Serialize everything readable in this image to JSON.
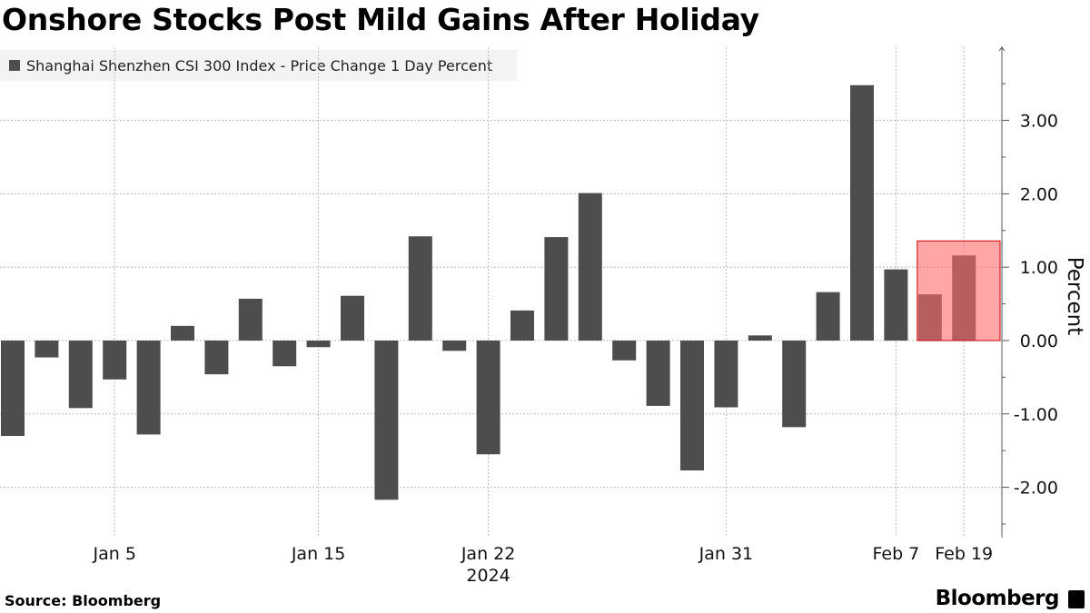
{
  "header": {
    "title": "Onshore Stocks Post Mild Gains After Holiday"
  },
  "footer": {
    "source": "Source: Bloomberg",
    "brand": "Bloomberg",
    "brand_icon": "bloomberg-logo-icon"
  },
  "colors": {
    "bar": "#4d4d4d",
    "highlight_fill": "#ff6b6b",
    "highlight_stroke": "#cc0000",
    "grid": "#bbbbbb"
  },
  "chart_data": {
    "type": "bar",
    "legend": "Shanghai Shenzhen CSI 300 Index - Price Change 1 Day Percent",
    "legend_position": "top-left",
    "ylabel": "Percent",
    "ylim": [
      -2.7,
      4.0
    ],
    "y_ticks": [
      "3.00",
      "2.00",
      "1.00",
      "0.00",
      "-1.00",
      "-2.00"
    ],
    "y_tick_values": [
      3,
      2,
      1,
      0,
      -1,
      -2
    ],
    "x_tick_labels": [
      {
        "label": "Jan 5",
        "index": 3
      },
      {
        "label": "Jan 15",
        "index": 9
      },
      {
        "label": "Jan 22",
        "index": 14
      },
      {
        "label": "Jan 31",
        "index": 21
      },
      {
        "label": "Feb 7",
        "index": 26
      },
      {
        "label": "Feb 19",
        "index": 28
      }
    ],
    "year_label": "2024",
    "year_label_index": 14,
    "grid": true,
    "values": [
      -1.3,
      -0.23,
      -0.92,
      -0.53,
      -1.28,
      0.2,
      -0.46,
      0.57,
      -0.35,
      -0.09,
      0.61,
      -2.17,
      1.42,
      -0.14,
      -1.55,
      0.41,
      1.41,
      2.01,
      -0.27,
      -0.89,
      -1.77,
      -0.91,
      0.07,
      -1.18,
      0.66,
      3.48,
      0.97,
      0.63,
      1.16
    ],
    "highlight_index": 28
  }
}
